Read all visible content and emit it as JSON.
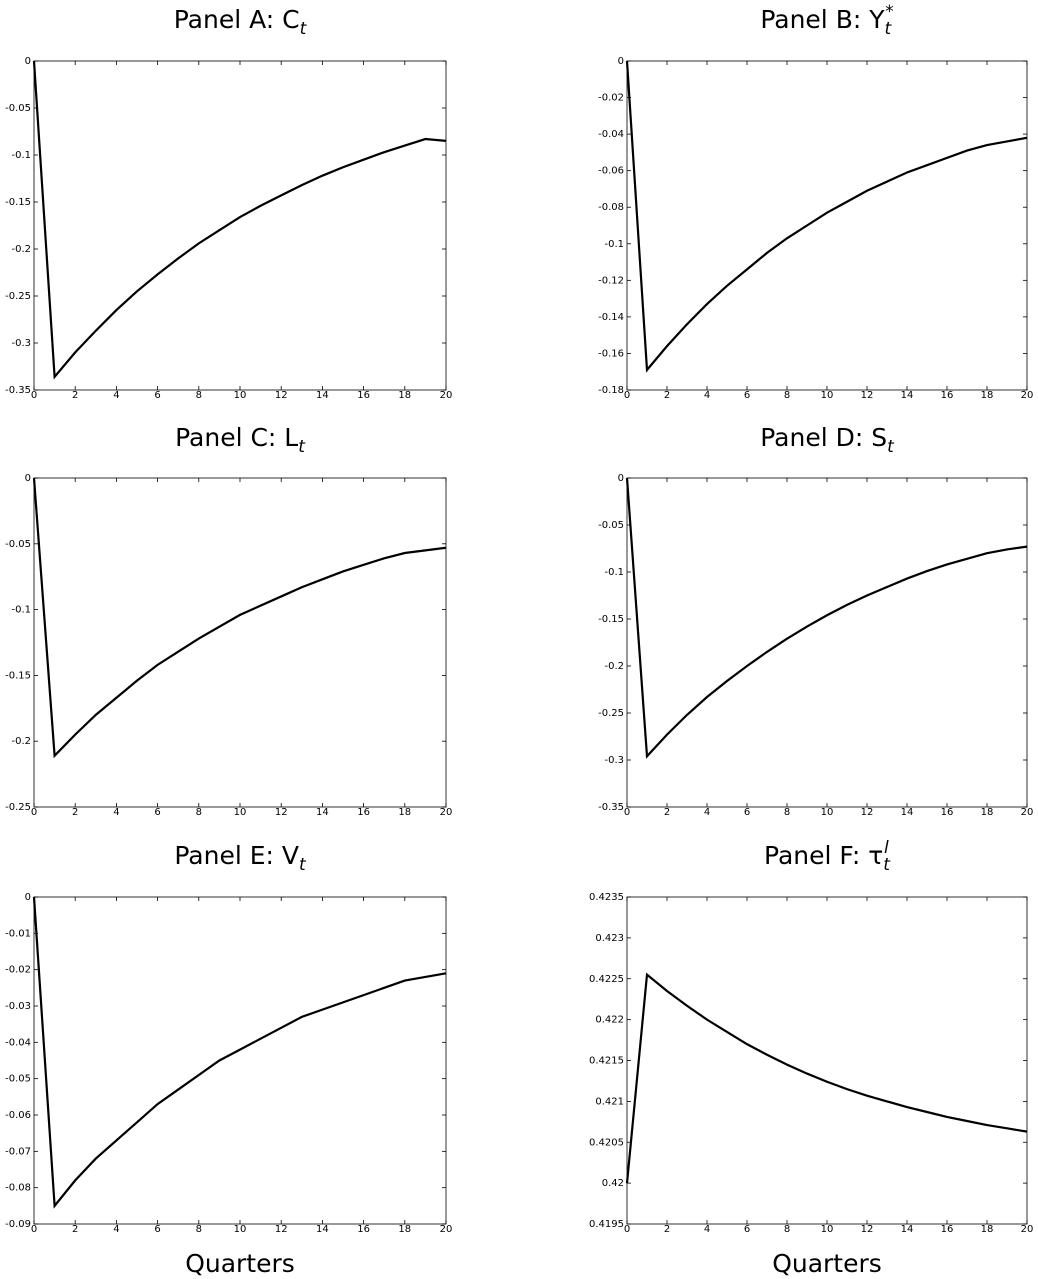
{
  "chart_data": [
    {
      "panel": "A",
      "type": "line",
      "title": "Panel A: C",
      "title_sub": "t",
      "title_sup": "",
      "xlabel": "",
      "ylabel": "",
      "xlim": [
        0,
        20
      ],
      "ylim": [
        -0.35,
        0
      ],
      "xticks": [
        0,
        2,
        4,
        6,
        8,
        10,
        12,
        14,
        16,
        18,
        20
      ],
      "yticks": [
        0,
        -0.05,
        -0.1,
        -0.15,
        -0.2,
        -0.25,
        -0.3,
        -0.35
      ],
      "ytick_labels": [
        "0",
        "-0.05",
        "-0.1",
        "-0.15",
        "-0.2",
        "-0.25",
        "-0.3",
        "-0.35"
      ],
      "grid": false,
      "series": [
        {
          "x": [
            0,
            1,
            2,
            3,
            4,
            5,
            6,
            7,
            8,
            9,
            10,
            11,
            12,
            13,
            14,
            15,
            16,
            17,
            18,
            19,
            20
          ],
          "values": [
            0,
            -0.336,
            -0.31,
            -0.287,
            -0.265,
            -0.245,
            -0.227,
            -0.21,
            -0.194,
            -0.18,
            -0.166,
            -0.154,
            -0.143,
            -0.132,
            -0.122,
            -0.113,
            -0.105,
            -0.097,
            -0.09,
            -0.083,
            -0.085
          ]
        }
      ]
    },
    {
      "panel": "B",
      "type": "line",
      "title": "Panel B: Y",
      "title_sub": "t",
      "title_sup": "*",
      "xlabel": "",
      "ylabel": "",
      "xlim": [
        0,
        20
      ],
      "ylim": [
        -0.18,
        0
      ],
      "xticks": [
        0,
        2,
        4,
        6,
        8,
        10,
        12,
        14,
        16,
        18,
        20
      ],
      "yticks": [
        0,
        -0.02,
        -0.04,
        -0.06,
        -0.08,
        -0.1,
        -0.12,
        -0.14,
        -0.16,
        -0.18
      ],
      "ytick_labels": [
        "0",
        "-0.02",
        "-0.04",
        "-0.06",
        "-0.08",
        "-0.1",
        "-0.12",
        "-0.14",
        "-0.16",
        "-0.18"
      ],
      "grid": false,
      "series": [
        {
          "x": [
            0,
            1,
            2,
            3,
            4,
            5,
            6,
            7,
            8,
            9,
            10,
            11,
            12,
            13,
            14,
            15,
            16,
            17,
            18,
            19,
            20
          ],
          "values": [
            0,
            -0.169,
            -0.156,
            -0.144,
            -0.133,
            -0.123,
            -0.114,
            -0.105,
            -0.097,
            -0.09,
            -0.083,
            -0.077,
            -0.071,
            -0.066,
            -0.061,
            -0.057,
            -0.053,
            -0.049,
            -0.046,
            -0.044,
            -0.042
          ]
        }
      ]
    },
    {
      "panel": "C",
      "type": "line",
      "title": "Panel C: L",
      "title_sub": "t",
      "title_sup": "",
      "xlabel": "",
      "ylabel": "",
      "xlim": [
        0,
        20
      ],
      "ylim": [
        -0.25,
        0
      ],
      "xticks": [
        0,
        2,
        4,
        6,
        8,
        10,
        12,
        14,
        16,
        18,
        20
      ],
      "yticks": [
        0,
        -0.05,
        -0.1,
        -0.15,
        -0.2,
        -0.25
      ],
      "ytick_labels": [
        "0",
        "-0.05",
        "-0.1",
        "-0.15",
        "-0.2",
        "-0.25"
      ],
      "grid": false,
      "series": [
        {
          "x": [
            0,
            1,
            2,
            3,
            4,
            5,
            6,
            7,
            8,
            9,
            10,
            11,
            12,
            13,
            14,
            15,
            16,
            17,
            18,
            19,
            20
          ],
          "values": [
            0,
            -0.211,
            -0.195,
            -0.18,
            -0.167,
            -0.154,
            -0.142,
            -0.132,
            -0.122,
            -0.113,
            -0.104,
            -0.097,
            -0.09,
            -0.083,
            -0.077,
            -0.071,
            -0.066,
            -0.061,
            -0.057,
            -0.055,
            -0.053
          ]
        }
      ]
    },
    {
      "panel": "D",
      "type": "line",
      "title": "Panel D: S",
      "title_sub": "t",
      "title_sup": "",
      "xlabel": "",
      "ylabel": "",
      "xlim": [
        0,
        20
      ],
      "ylim": [
        -0.35,
        0
      ],
      "xticks": [
        0,
        2,
        4,
        6,
        8,
        10,
        12,
        14,
        16,
        18,
        20
      ],
      "yticks": [
        0,
        -0.05,
        -0.1,
        -0.15,
        -0.2,
        -0.25,
        -0.3,
        -0.35
      ],
      "ytick_labels": [
        "0",
        "-0.05",
        "-0.1",
        "-0.15",
        "-0.2",
        "-0.25",
        "-0.3",
        "-0.35"
      ],
      "grid": false,
      "series": [
        {
          "x": [
            0,
            1,
            2,
            3,
            4,
            5,
            6,
            7,
            8,
            9,
            10,
            11,
            12,
            13,
            14,
            15,
            16,
            17,
            18,
            19,
            20
          ],
          "values": [
            0,
            -0.296,
            -0.273,
            -0.252,
            -0.233,
            -0.216,
            -0.2,
            -0.185,
            -0.171,
            -0.158,
            -0.146,
            -0.135,
            -0.125,
            -0.116,
            -0.107,
            -0.099,
            -0.092,
            -0.086,
            -0.08,
            -0.076,
            -0.073
          ]
        }
      ]
    },
    {
      "panel": "E",
      "type": "line",
      "title": "Panel E: V",
      "title_sub": "t",
      "title_sup": "",
      "xlabel": "Quarters",
      "ylabel": "",
      "xlim": [
        0,
        20
      ],
      "ylim": [
        -0.09,
        0
      ],
      "xticks": [
        0,
        2,
        4,
        6,
        8,
        10,
        12,
        14,
        16,
        18,
        20
      ],
      "yticks": [
        0,
        -0.01,
        -0.02,
        -0.03,
        -0.04,
        -0.05,
        -0.06,
        -0.07,
        -0.08,
        -0.09
      ],
      "ytick_labels": [
        "0",
        "-0.01",
        "-0.02",
        "-0.03",
        "-0.04",
        "-0.05",
        "-0.06",
        "-0.07",
        "-0.08",
        "-0.09"
      ],
      "grid": false,
      "series": [
        {
          "x": [
            0,
            1,
            2,
            3,
            4,
            5,
            6,
            7,
            8,
            9,
            10,
            11,
            12,
            13,
            14,
            15,
            16,
            17,
            18,
            19,
            20
          ],
          "values": [
            0,
            -0.085,
            -0.078,
            -0.072,
            -0.067,
            -0.062,
            -0.057,
            -0.053,
            -0.049,
            -0.045,
            -0.042,
            -0.039,
            -0.036,
            -0.033,
            -0.031,
            -0.029,
            -0.027,
            -0.025,
            -0.023,
            -0.022,
            -0.021
          ]
        }
      ]
    },
    {
      "panel": "F",
      "type": "line",
      "title": "Panel F: τ",
      "title_sub": "t",
      "title_sup": "l",
      "xlabel": "Quarters",
      "ylabel": "",
      "xlim": [
        0,
        20
      ],
      "ylim": [
        0.4195,
        0.4235
      ],
      "xticks": [
        0,
        2,
        4,
        6,
        8,
        10,
        12,
        14,
        16,
        18,
        20
      ],
      "yticks": [
        0.4235,
        0.423,
        0.4225,
        0.422,
        0.4215,
        0.421,
        0.4205,
        0.42,
        0.4195
      ],
      "ytick_labels": [
        "0.4235",
        "0.423",
        "0.4225",
        "0.422",
        "0.4215",
        "0.421",
        "0.4205",
        "0.42",
        "0.4195"
      ],
      "grid": false,
      "series": [
        {
          "x": [
            0,
            1,
            2,
            3,
            4,
            5,
            6,
            7,
            8,
            9,
            10,
            11,
            12,
            13,
            14,
            15,
            16,
            17,
            18,
            19,
            20
          ],
          "values": [
            0.42,
            0.42255,
            0.42235,
            0.42217,
            0.422,
            0.42185,
            0.4217,
            0.42157,
            0.42145,
            0.42134,
            0.42124,
            0.42115,
            0.42107,
            0.421,
            0.42093,
            0.42087,
            0.42081,
            0.42076,
            0.42071,
            0.42067,
            0.42063
          ]
        }
      ]
    }
  ]
}
